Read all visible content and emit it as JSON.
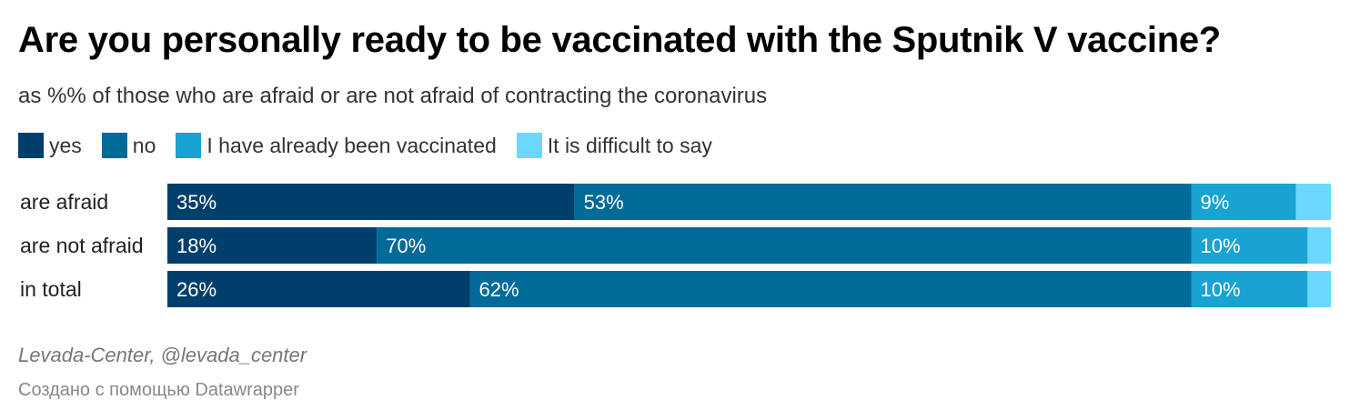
{
  "header": {
    "title": "Are you personally ready to be vaccinated with the Sputnik V vaccine?",
    "subtitle": "as %% of those who are afraid or are not afraid of contracting the coronavirus"
  },
  "legend": [
    {
      "label": "yes",
      "color": "#003f6b"
    },
    {
      "label": "no",
      "color": "#006a98"
    },
    {
      "label": "I have already been vaccinated",
      "color": "#18a3d2"
    },
    {
      "label": "It is difficult to say",
      "color": "#6cd8ff"
    }
  ],
  "chart_data": {
    "type": "bar",
    "orientation": "horizontal",
    "stacked": true,
    "categories": [
      "are afraid",
      "are not afraid",
      "in total"
    ],
    "series": [
      {
        "name": "yes",
        "values": [
          35,
          18,
          26
        ],
        "color": "#003f6b"
      },
      {
        "name": "no",
        "values": [
          53,
          70,
          62
        ],
        "color": "#006a98"
      },
      {
        "name": "I have already been vaccinated",
        "values": [
          9,
          10,
          10
        ],
        "color": "#18a3d2"
      },
      {
        "name": "It is difficult to say",
        "values": [
          3,
          2,
          2
        ],
        "color": "#6cd8ff"
      }
    ],
    "data_labels": [
      [
        "35%",
        "53%",
        "9%",
        ""
      ],
      [
        "18%",
        "70%",
        "10%",
        ""
      ],
      [
        "26%",
        "62%",
        "10%",
        ""
      ]
    ],
    "xlim": [
      0,
      100
    ],
    "legend_position": "top-left",
    "grid": false
  },
  "footer": {
    "source": "Levada-Center, @levada_center",
    "credit": "Создано с помощью Datawrapper"
  }
}
